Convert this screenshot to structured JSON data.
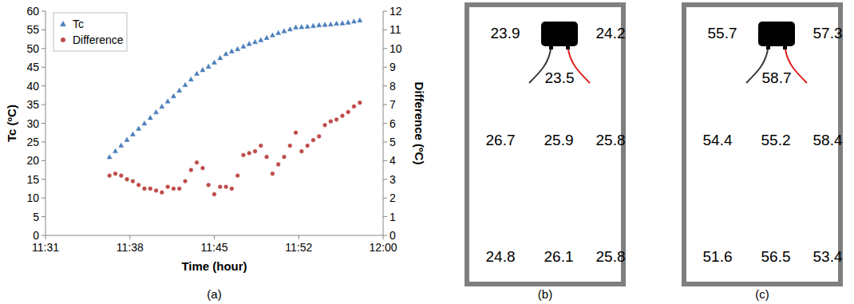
{
  "chart_data": [
    {
      "type": "scatter",
      "caption": "(a)",
      "x_label": "Time (hour)",
      "y_label": "Tc (ºC)",
      "y2_label": "Difference (ºC)",
      "x": [
        11.6083,
        11.6167,
        11.625,
        11.6333,
        11.6417,
        11.65,
        11.6583,
        11.6667,
        11.675,
        11.6833,
        11.6917,
        11.7,
        11.7083,
        11.7167,
        11.725,
        11.7333,
        11.7417,
        11.75,
        11.7583,
        11.7667,
        11.775,
        11.7833,
        11.7917,
        11.8,
        11.8083,
        11.8167,
        11.825,
        11.8333,
        11.8417,
        11.85,
        11.8583,
        11.8667,
        11.875,
        11.8833,
        11.8917,
        11.9,
        11.9083,
        11.9167,
        11.925,
        11.9333,
        11.9417,
        11.95,
        11.9583,
        11.9667
      ],
      "series": [
        {
          "name": "Tc",
          "color": "#4a7ebb",
          "marker": "triangle",
          "values": [
            21.0,
            22.6,
            24.1,
            25.6,
            27.1,
            28.6,
            30.0,
            31.5,
            33.0,
            34.5,
            35.9,
            37.3,
            38.8,
            40.3,
            41.8,
            43.3,
            44.3,
            45.2,
            46.3,
            47.5,
            48.6,
            49.3,
            49.9,
            50.6,
            51.3,
            51.8,
            52.3,
            52.9,
            53.6,
            54.2,
            54.7,
            55.2,
            55.7,
            55.8,
            55.9,
            56.1,
            56.3,
            56.4,
            56.5,
            56.7,
            56.8,
            57.0,
            57.3,
            57.6
          ]
        },
        {
          "name": "Difference",
          "color": "#be4b48",
          "marker": "circle",
          "axis": "y2",
          "values": [
            3.2,
            3.3,
            3.2,
            3.0,
            2.9,
            2.7,
            2.5,
            2.5,
            2.4,
            2.3,
            2.6,
            2.5,
            2.5,
            2.9,
            3.5,
            3.9,
            3.6,
            2.7,
            2.2,
            2.6,
            2.6,
            2.5,
            3.2,
            4.3,
            4.4,
            4.5,
            4.8,
            4.2,
            3.3,
            3.8,
            4.2,
            4.8,
            5.5,
            4.5,
            4.8,
            5.1,
            5.3,
            5.9,
            6.1,
            6.2,
            6.4,
            6.6,
            6.9,
            7.1
          ]
        }
      ],
      "xlim": [
        11.5167,
        12.0
      ],
      "xticks": [
        {
          "value": 11.5167,
          "label": "11:31"
        },
        {
          "value": 11.6375,
          "label": "11:38"
        },
        {
          "value": 11.7583,
          "label": "11:45"
        },
        {
          "value": 11.8792,
          "label": "11:52"
        },
        {
          "value": 12.0,
          "label": "12:00"
        }
      ],
      "ylim": [
        0,
        60
      ],
      "yticks": [
        0,
        5,
        10,
        15,
        20,
        25,
        30,
        35,
        40,
        45,
        50,
        55,
        60
      ],
      "y2lim": [
        0,
        12
      ],
      "y2ticks": [
        0,
        1,
        2,
        3,
        4,
        5,
        6,
        7,
        8,
        9,
        10,
        11,
        12
      ],
      "grid": false,
      "legend": "upper-left"
    }
  ],
  "diagrams": [
    {
      "caption": "(b)",
      "top": [
        23.9,
        24.2
      ],
      "sensor": 23.5,
      "middle": [
        26.7,
        25.9,
        25.8
      ],
      "bottom": [
        24.8,
        26.1,
        25.8
      ]
    },
    {
      "caption": "(c)",
      "top": [
        55.7,
        57.3
      ],
      "sensor": 58.7,
      "middle": [
        54.4,
        55.2,
        58.4
      ],
      "bottom": [
        51.6,
        56.5,
        53.4
      ]
    }
  ]
}
